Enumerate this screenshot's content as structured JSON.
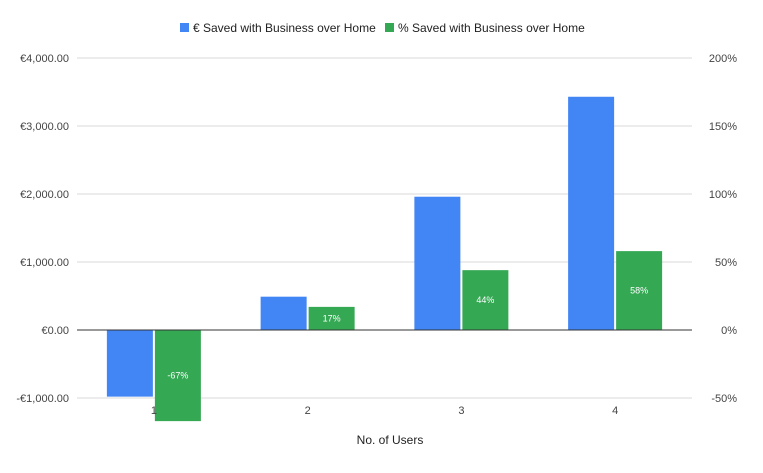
{
  "chart_data": {
    "type": "bar",
    "categories": [
      "1",
      "2",
      "3",
      "4"
    ],
    "xlabel": "No. of Users",
    "series": [
      {
        "name": "€ Saved with Business over Home",
        "axis": "left",
        "color": "#4285f4",
        "values": [
          -980,
          490,
          1960,
          3430
        ]
      },
      {
        "name": "% Saved with Business over Home",
        "axis": "right",
        "color": "#34a853",
        "values": [
          -67,
          17,
          44,
          58
        ],
        "data_labels": [
          "-67%",
          "17%",
          "44%",
          "58%"
        ]
      }
    ],
    "y_left": {
      "min": -1000,
      "max": 4000,
      "ticks": [
        -1000,
        0,
        1000,
        2000,
        3000,
        4000
      ],
      "tick_labels": [
        "-€1,000.00",
        "€0.00",
        "€1,000.00",
        "€2,000.00",
        "€3,000.00",
        "€4,000.00"
      ]
    },
    "y_right": {
      "min": -50,
      "max": 200,
      "ticks": [
        -50,
        0,
        50,
        100,
        150,
        200
      ],
      "tick_labels": [
        "-50%",
        "0%",
        "50%",
        "100%",
        "150%",
        "200%"
      ]
    },
    "grid": true,
    "legend_position": "top-center"
  }
}
